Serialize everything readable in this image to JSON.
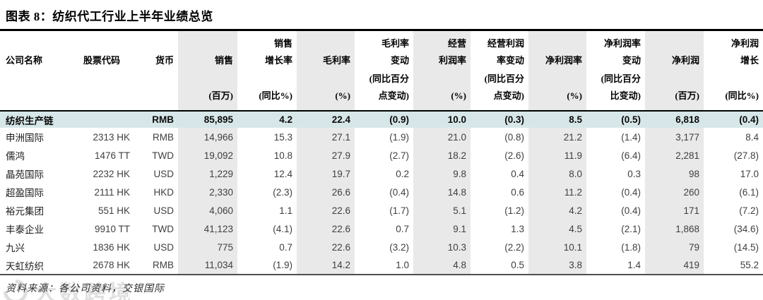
{
  "title": "图表 8：纺织代工行业上半年业绩总览",
  "source_note": "资料来源：各公司资料，交银国际",
  "watermark": "大数跨境",
  "colors": {
    "summary_row_bg": "#d7e7e9",
    "shaded_column_bg": "#e9e9e9",
    "top_rule": "#000000",
    "bottom_rule": "#4f4f4f"
  },
  "table": {
    "columns": [
      {
        "key": "company",
        "label": "公司名称",
        "unit": "",
        "align": "left",
        "shaded": false
      },
      {
        "key": "ticker",
        "label": "股票代码",
        "unit": "",
        "align": "right",
        "shaded": false
      },
      {
        "key": "currency",
        "label": "货币",
        "unit": "",
        "align": "right",
        "shaded": false
      },
      {
        "key": "sales",
        "label": "销售",
        "unit": "(百万)",
        "align": "right",
        "shaded": true
      },
      {
        "key": "sales_growth",
        "label": "销售\n增长率",
        "unit": "(同比%)",
        "align": "right",
        "shaded": false
      },
      {
        "key": "gross_margin",
        "label": "毛利率",
        "unit": "(%)",
        "align": "right",
        "shaded": true
      },
      {
        "key": "gm_change",
        "label": "毛利率\n变动",
        "unit": "(同比百分\n点变动)",
        "align": "right",
        "shaded": false
      },
      {
        "key": "op_margin",
        "label": "经营\n利润率",
        "unit": "(%)",
        "align": "right",
        "shaded": true
      },
      {
        "key": "opm_change",
        "label": "经营利润\n率变动",
        "unit": "(同比百分\n点变动)",
        "align": "right",
        "shaded": false
      },
      {
        "key": "net_margin",
        "label": "净利润率",
        "unit": "(%)",
        "align": "right",
        "shaded": true
      },
      {
        "key": "nm_change",
        "label": "净利润率\n变动",
        "unit": "(同比百分\n比变动)",
        "align": "right",
        "shaded": false
      },
      {
        "key": "net_profit",
        "label": "净利润",
        "unit": "(百万)",
        "align": "right",
        "shaded": true
      },
      {
        "key": "np_growth",
        "label": "净利润\n增长",
        "unit": "(同比%)",
        "align": "right",
        "shaded": false
      }
    ],
    "summary_row": {
      "cells": [
        "纺织生产链",
        "",
        "RMB",
        "85,895",
        "4.2",
        "22.4",
        "(0.9)",
        "10.0",
        "(0.3)",
        "8.5",
        "(0.5)",
        "6,818",
        "(0.4)"
      ]
    },
    "rows": [
      {
        "cells": [
          "申洲国际",
          "2313 HK",
          "RMB",
          "14,966",
          "15.3",
          "27.1",
          "(1.9)",
          "21.0",
          "(0.8)",
          "21.2",
          "(1.4)",
          "3,177",
          "8.4"
        ]
      },
      {
        "cells": [
          "儒鸿",
          "1476 TT",
          "TWD",
          "19,092",
          "10.8",
          "27.9",
          "(2.7)",
          "18.2",
          "(2.6)",
          "11.9",
          "(6.4)",
          "2,281",
          "(27.8)"
        ]
      },
      {
        "cells": [
          "晶苑国际",
          "2232 HK",
          "USD",
          "1,229",
          "12.4",
          "19.7",
          "0.2",
          "9.8",
          "0.4",
          "8.0",
          "0.3",
          "98",
          "17.0"
        ]
      },
      {
        "cells": [
          "超盈国际",
          "2111 HK",
          "HKD",
          "2,330",
          "(2.3)",
          "26.6",
          "(0.4)",
          "14.8",
          "0.6",
          "11.2",
          "(0.4)",
          "260",
          "(6.1)"
        ]
      },
      {
        "cells": [
          "裕元集团",
          "551 HK",
          "USD",
          "4,060",
          "1.1",
          "22.6",
          "(1.7)",
          "5.1",
          "(1.2)",
          "4.2",
          "(0.4)",
          "171",
          "(7.2)"
        ]
      },
      {
        "cells": [
          "丰泰企业",
          "9910 TT",
          "TWD",
          "41,123",
          "(4.1)",
          "22.6",
          "0.7",
          "9.1",
          "1.3",
          "4.5",
          "(2.1)",
          "1,868",
          "(34.6)"
        ]
      },
      {
        "cells": [
          "九兴",
          "1836 HK",
          "USD",
          "775",
          "0.7",
          "22.6",
          "(3.2)",
          "10.3",
          "(2.2)",
          "10.1",
          "(1.8)",
          "79",
          "(14.5)"
        ]
      },
      {
        "cells": [
          "天虹纺织",
          "2678 HK",
          "RMB",
          "11,034",
          "(1.9)",
          "14.2",
          "1.0",
          "4.8",
          "0.5",
          "3.8",
          "1.4",
          "419",
          "55.2"
        ]
      }
    ]
  }
}
